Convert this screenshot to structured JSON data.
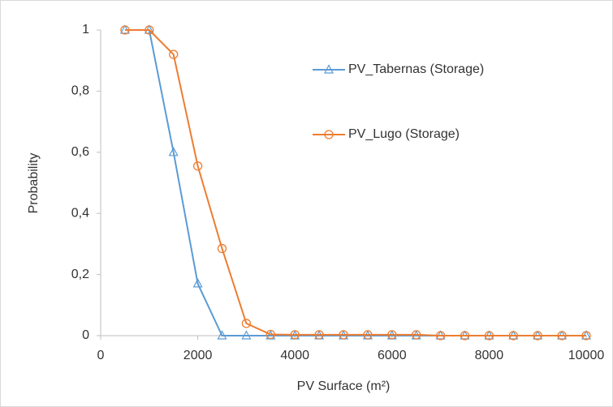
{
  "chart_data": {
    "type": "line",
    "x_label": "PV Surface (m²)",
    "y_label": "Probability",
    "x": [
      500,
      1000,
      1500,
      2000,
      2500,
      3000,
      3500,
      4000,
      4500,
      5000,
      5500,
      6000,
      6500,
      7000,
      7500,
      8000,
      8500,
      9000,
      9500,
      10000
    ],
    "series": [
      {
        "name": "PV_Tabernas (Storage)",
        "color": "#5b9bd5",
        "marker": "triangle",
        "values": [
          1,
          1,
          0.6,
          0.17,
          0,
          0,
          0,
          0,
          0,
          0,
          0,
          0,
          0,
          0,
          0,
          0,
          0,
          0,
          0,
          0
        ]
      },
      {
        "name": "PV_Lugo (Storage)",
        "color": "#ed7d31",
        "marker": "circle",
        "values": [
          1,
          1,
          0.92,
          0.555,
          0.285,
          0.04,
          0.004,
          0.003,
          0.003,
          0.003,
          0.003,
          0.003,
          0.003,
          0,
          0,
          0,
          0,
          0,
          0,
          0
        ]
      }
    ],
    "xlim": [
      0,
      10000
    ],
    "xticks": [
      0,
      2000,
      4000,
      6000,
      8000,
      10000
    ],
    "ylim": [
      0,
      1
    ],
    "yticks": [
      0,
      {
        "value": 0.2,
        "label": "0,2"
      },
      {
        "value": 0.4,
        "label": "0,4"
      },
      {
        "value": 0.6,
        "label": "0,6"
      },
      {
        "value": 0.8,
        "label": "0,8"
      },
      1
    ],
    "grid": false
  }
}
